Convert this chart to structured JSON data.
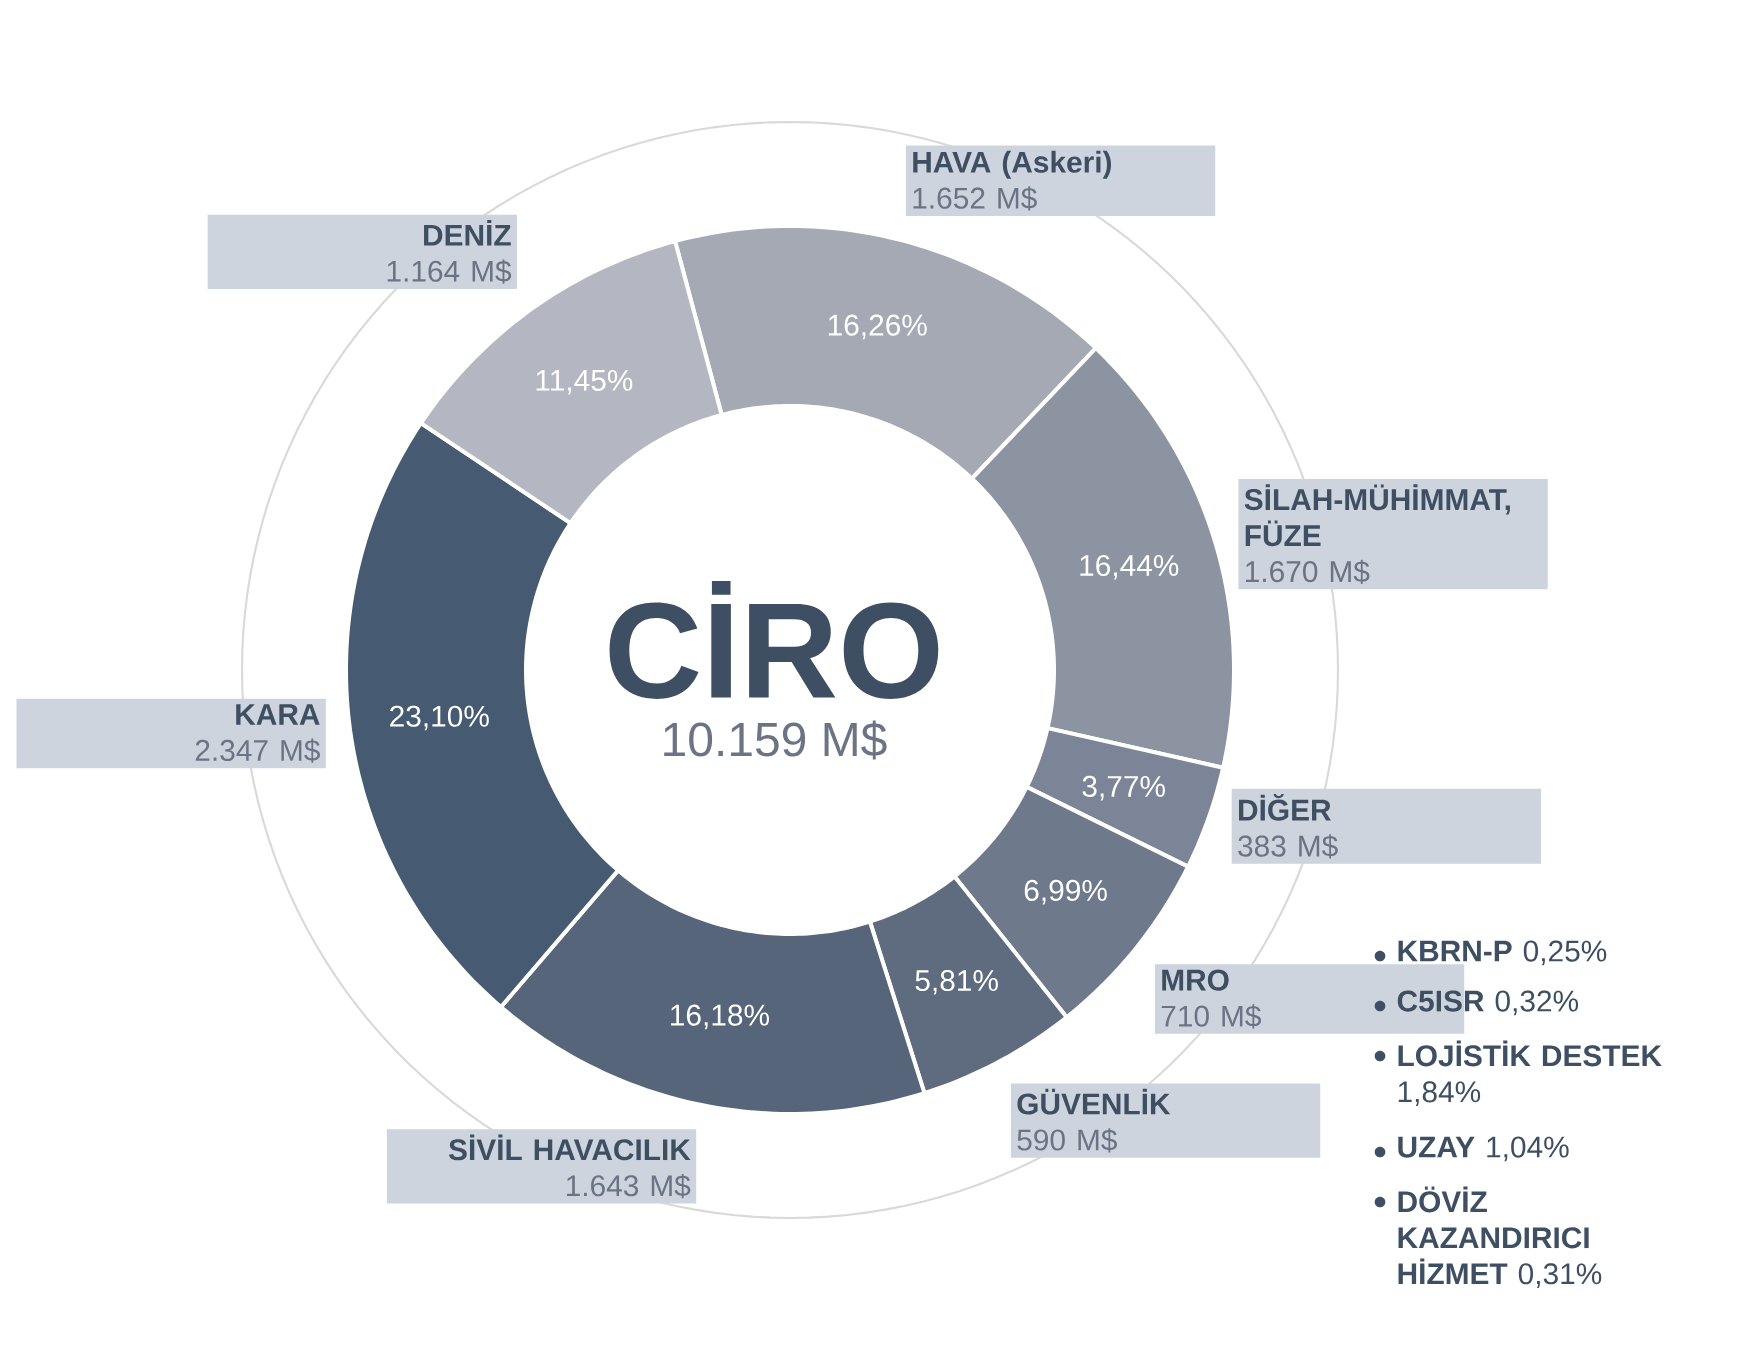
{
  "chart_data": {
    "type": "donut",
    "title": "CİRO",
    "subtitle": "10.159 M$",
    "categories": [
      "HAVA (Askeri)",
      "SİLAH-MÜHİMMAT, FÜZE",
      "DİĞER",
      "MRO",
      "GÜVENLİK",
      "SİVİL HAVACILIK",
      "KARA",
      "DENİZ"
    ],
    "values": [
      16.26,
      16.44,
      3.77,
      6.99,
      5.81,
      16.18,
      23.1,
      11.45
    ],
    "colors": [
      "#a4a9b4",
      "#8c94a2",
      "#7b8597",
      "#6e798b",
      "#5f6b7e",
      "#56657a",
      "#465b71",
      "#b4b7c2"
    ],
    "value_labels": [
      "16,26%",
      "16,44%",
      "3,77%",
      "6,99%",
      "5,81%",
      "16,18%",
      "23,10%",
      "11,45%"
    ],
    "annotations": [
      "1.652 M$",
      "1.670 M$",
      "383 M$",
      "710 M$",
      "590 M$",
      "1.643 M$",
      "2.347 M$",
      "1.164 M$",
      "**KBRN-P** 0,25%",
      "**C5ISR** 0,32%",
      "**LOJİSTİK DESTEK** 1,84%",
      "**UZAY** 1,04%",
      "**DÖVİZ KAZANDIRICI HİZMET** 0,31%"
    ]
  }
}
